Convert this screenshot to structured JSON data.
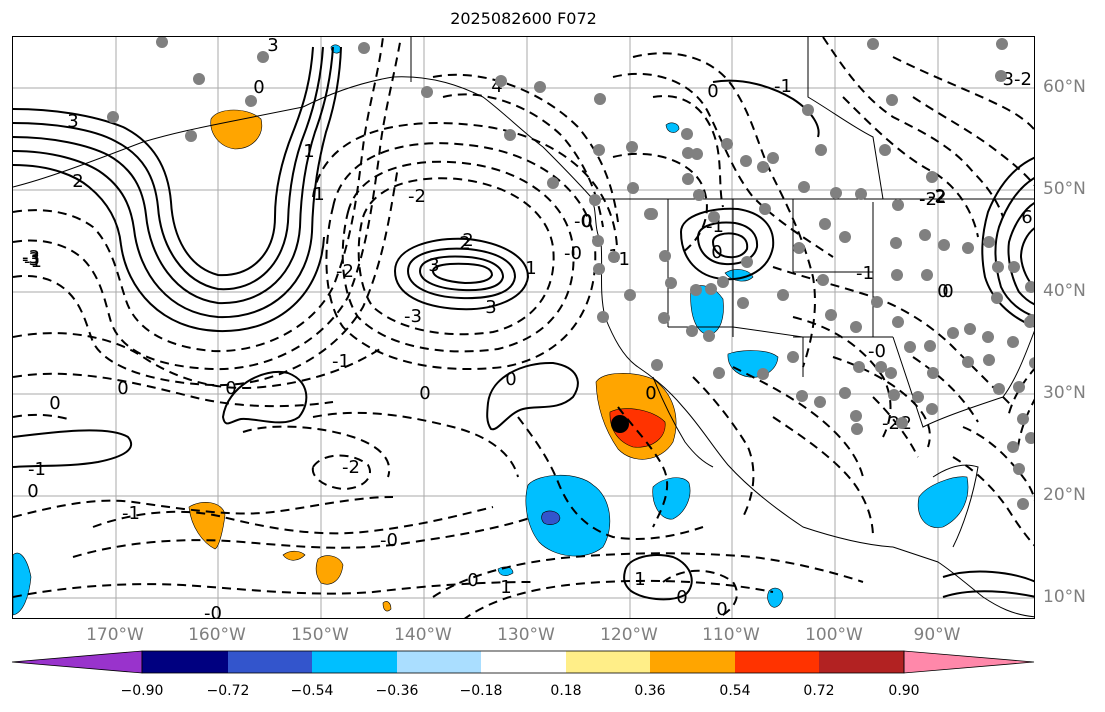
{
  "title": "2025082600 F072",
  "longitude_labels": [
    "170°W",
    "160°W",
    "150°W",
    "140°W",
    "130°W",
    "120°W",
    "110°W",
    "100°W",
    "90°W"
  ],
  "latitude_labels": [
    "60°N",
    "50°N",
    "40°N",
    "30°N",
    "20°N",
    "10°N"
  ],
  "colorbar": {
    "colors": [
      "#9933cc",
      "#000080",
      "#3355cc",
      "#00bfff",
      "#aadeff",
      "#ffffff",
      "#ffee88",
      "#ffa500",
      "#ff3300",
      "#b22222",
      "#ff88aa"
    ],
    "ticks": [
      "−0.90",
      "−0.72",
      "−0.54",
      "−0.36",
      "−0.18",
      "0.18",
      "0.36",
      "0.54",
      "0.72",
      "0.90"
    ]
  },
  "contour_labels": [
    "3",
    "2",
    "3",
    "0",
    "1",
    "1",
    "2",
    "3",
    "1",
    "-1",
    "-2",
    "-1",
    "-2",
    "-3",
    "-2",
    "-1",
    "0",
    "0",
    "-1",
    "0",
    "0",
    "0",
    "-0",
    "4",
    "-3",
    "-2",
    "0",
    "-1",
    "-1",
    "0",
    "-0",
    "0",
    "-0",
    "1",
    "0",
    "-3",
    "0",
    "-2",
    "-2",
    "2",
    "-1",
    "1",
    "0",
    "0",
    "1",
    "2",
    "3",
    "-1",
    "-0",
    "-2",
    "0",
    "0",
    "0",
    "-0",
    "-3",
    "-2",
    "6"
  ],
  "marker_station": "black dot"
}
